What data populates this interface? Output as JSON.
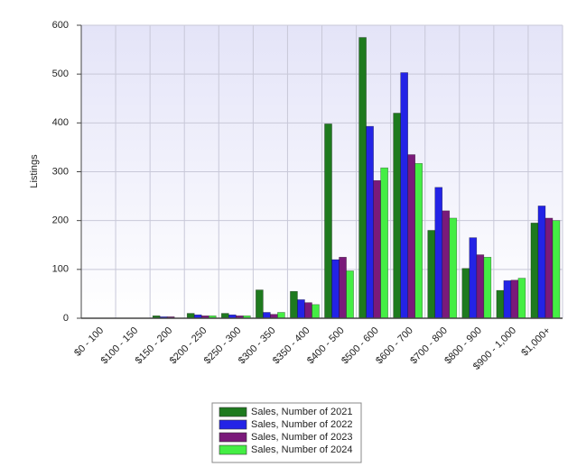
{
  "chart_data": {
    "type": "bar",
    "y_label": "Listings",
    "categories": [
      "$0 - 100",
      "$100 - 150",
      "$150 - 200",
      "$200 - 250",
      "$250 - 300",
      "$300 - 350",
      "$350 - 400",
      "$400 - 500",
      "$500 - 600",
      "$600 - 700",
      "$700 - 800",
      "$800 - 900",
      "$900 - 1,000",
      "$1,000+"
    ],
    "series": [
      {
        "name": "Sales, Number of 2021",
        "color": "#1e7a1e",
        "values": [
          0,
          0,
          5,
          10,
          10,
          58,
          55,
          398,
          575,
          420,
          180,
          102,
          57,
          195
        ]
      },
      {
        "name": "Sales, Number of 2022",
        "color": "#2323e6",
        "values": [
          0,
          0,
          3,
          7,
          7,
          12,
          38,
          120,
          393,
          503,
          268,
          165,
          77,
          230
        ]
      },
      {
        "name": "Sales, Number of 2023",
        "color": "#7a1a7a",
        "values": [
          0,
          0,
          3,
          5,
          5,
          8,
          32,
          125,
          282,
          335,
          220,
          130,
          78,
          205
        ]
      },
      {
        "name": "Sales, Number of 2024",
        "color": "#44ee44",
        "values": [
          0,
          0,
          0,
          5,
          5,
          12,
          28,
          97,
          308,
          317,
          205,
          125,
          82,
          200
        ]
      }
    ],
    "ylim": [
      0,
      600
    ],
    "yticks": [
      0,
      100,
      200,
      300,
      400,
      500,
      600
    ],
    "grid": true,
    "legend": "bottom"
  }
}
